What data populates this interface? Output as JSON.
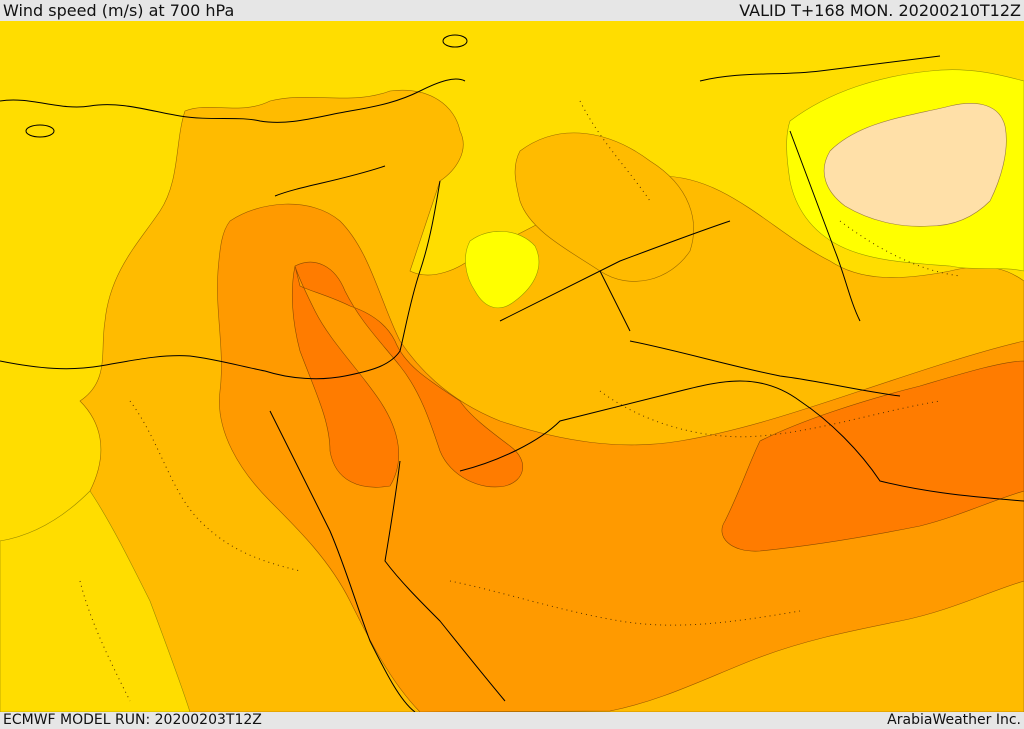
{
  "header": {
    "title": "Wind speed (m/s) at 700 hPa",
    "valid": "VALID T+168 MON. 20200210T12Z"
  },
  "footer": {
    "model_run": "ECMWF MODEL RUN: 20200203T12Z",
    "credit": "ArabiaWeather Inc."
  },
  "colors": {
    "band_1": "#ffff00",
    "band_2": "#ffdd00",
    "band_3": "#ffbb00",
    "band_4": "#ff9a00",
    "band_5": "#ff7c00",
    "low_wind_patch": "#ffe0a8",
    "border": "#000000"
  }
}
